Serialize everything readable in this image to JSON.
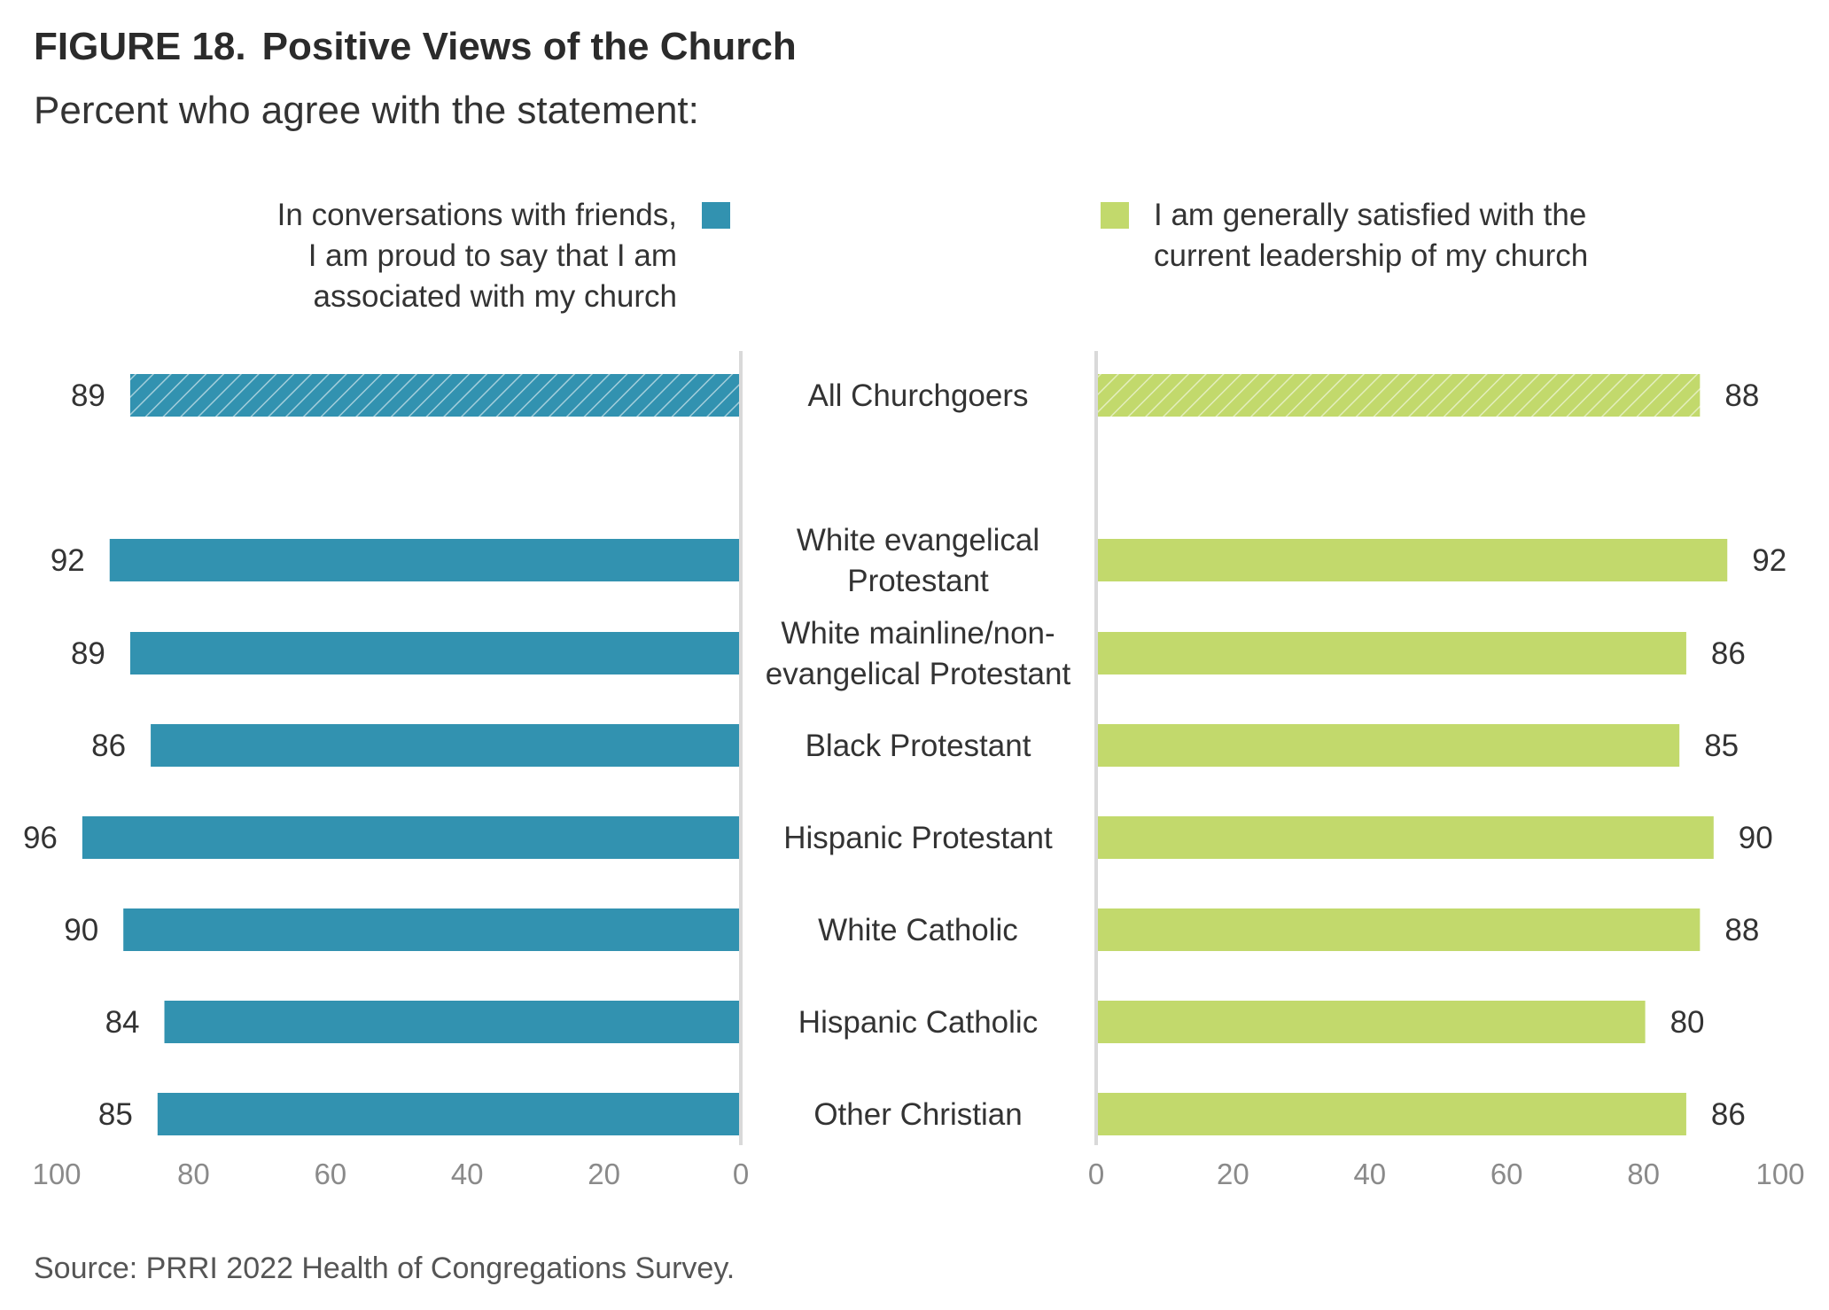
{
  "header": {
    "figure_label": "FIGURE 18.",
    "title": "Positive Views of the Church",
    "subtitle": "Percent who agree with the statement:"
  },
  "legend": {
    "left": [
      "In conversations with friends,",
      "I am proud to say that I am",
      "associated with my church"
    ],
    "right": [
      "I am generally satisfied with the",
      "current leadership of my church"
    ]
  },
  "source": "Source: PRRI 2022 Health of Congregations Survey.",
  "colors": {
    "left": "#3292b0",
    "right": "#c2d96c",
    "axis": "#d9d9d9",
    "tick_text": "#8a8a8a"
  },
  "chart_data": {
    "type": "bar",
    "orientation": "horizontal-diverging",
    "categories": [
      [
        "All Churchgoers"
      ],
      [
        "White evangelical",
        "Protestant"
      ],
      [
        "White mainline/non-",
        "evangelical Protestant"
      ],
      [
        "Black Protestant"
      ],
      [
        "Hispanic Protestant"
      ],
      [
        "White Catholic"
      ],
      [
        "Hispanic Catholic"
      ],
      [
        "Other Christian"
      ]
    ],
    "series": [
      {
        "name": "In conversations with friends, I am proud to say that I am associated with my church",
        "side": "left",
        "values": [
          89,
          92,
          89,
          86,
          96,
          90,
          84,
          85
        ]
      },
      {
        "name": "I am generally satisfied with the current leadership of my church",
        "side": "right",
        "values": [
          88,
          92,
          86,
          85,
          90,
          88,
          80,
          86
        ]
      }
    ],
    "highlighted_category": "All Churchgoers",
    "xlim": [
      0,
      100
    ],
    "left_ticks": [
      "100",
      "80",
      "60",
      "40",
      "20",
      "0"
    ],
    "right_ticks": [
      "0",
      "20",
      "40",
      "60",
      "80",
      "100"
    ],
    "legend_placement": "top",
    "grid": false
  }
}
